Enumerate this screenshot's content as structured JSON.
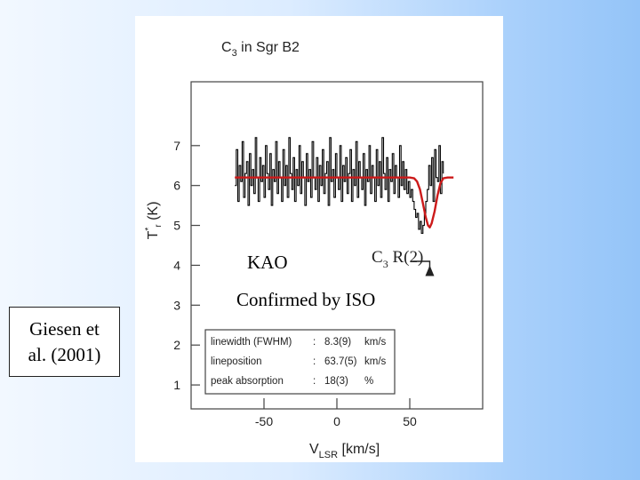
{
  "slide": {
    "credit_line1": "Giesen et",
    "credit_line2": "al. (2001)",
    "kao_label": "KAO",
    "confirmed_label": "Confirmed by ISO"
  },
  "chart_data": {
    "type": "line",
    "title": {
      "pre": "C",
      "sub": "3",
      "post": " in Sgr B2"
    },
    "xlabel": {
      "main": "V",
      "sub": "LSR",
      "unit": " [km/s]"
    },
    "ylabel": {
      "main": "T",
      "sup": "*",
      "sub": "r",
      "unit": " (K)"
    },
    "xlim": [
      -100,
      100
    ],
    "ylim": [
      0.4,
      8.6
    ],
    "xticks": [
      -50,
      0,
      50
    ],
    "yticks": [
      1,
      2,
      3,
      4,
      5,
      6,
      7
    ],
    "grid": false,
    "annotation": {
      "pre": "C",
      "sub": "3",
      "post": " R(2)",
      "x": 63.7,
      "y": 4.0
    },
    "fit_params": [
      {
        "label": "linewidth (FWHM)",
        "sep": ":",
        "value": "8.3(9)",
        "unit": "km/s"
      },
      {
        "label": "lineposition",
        "sep": ":",
        "value": "63.7(5)",
        "unit": "km/s"
      },
      {
        "label": "peak absorption",
        "sep": ":",
        "value": "18(3)",
        "unit": "%"
      }
    ],
    "series": [
      {
        "style": "data",
        "color": "#000000",
        "x_start": -70,
        "x_step": 1.0,
        "y": [
          6.0,
          6.9,
          5.6,
          6.5,
          6.1,
          7.1,
          5.7,
          6.3,
          6.6,
          5.5,
          6.8,
          6.0,
          6.4,
          5.8,
          7.2,
          6.2,
          5.6,
          6.7,
          6.1,
          6.5,
          5.7,
          7.0,
          6.3,
          5.9,
          6.8,
          5.5,
          6.4,
          6.1,
          7.1,
          5.8,
          6.6,
          6.2,
          5.6,
          6.9,
          6.0,
          6.5,
          5.7,
          7.2,
          6.3,
          5.9,
          6.7,
          5.6,
          6.4,
          6.0,
          7.0,
          5.8,
          6.6,
          6.2,
          5.5,
          6.8,
          6.1,
          6.4,
          5.7,
          7.1,
          6.2,
          5.9,
          6.7,
          5.6,
          6.5,
          6.0,
          6.9,
          5.8,
          6.3,
          6.6,
          5.5,
          7.2,
          6.1,
          6.4,
          5.7,
          6.8,
          6.2,
          5.9,
          7.0,
          5.6,
          6.5,
          6.1,
          6.7,
          5.8,
          6.3,
          6.9,
          5.6,
          6.4,
          6.0,
          7.1,
          5.7,
          6.6,
          6.2,
          5.9,
          6.8,
          5.5,
          6.4,
          6.1,
          7.0,
          5.8,
          6.5,
          6.2,
          5.6,
          6.9,
          6.0,
          6.6,
          5.7,
          7.2,
          6.3,
          5.9,
          6.7,
          5.6,
          6.4,
          6.1,
          6.8,
          5.8,
          6.5,
          6.2,
          5.7,
          7.0,
          6.0,
          6.6,
          5.9,
          6.4,
          5.8,
          6.1,
          5.7,
          5.9,
          5.6,
          5.4,
          5.2,
          5.3,
          4.9,
          5.1,
          4.8,
          5.0,
          5.3,
          5.6,
          5.9,
          6.5,
          6.0,
          6.7,
          5.6,
          6.9,
          6.2,
          6.1,
          7.0,
          5.8,
          6.6,
          6.3
        ]
      },
      {
        "style": "fit",
        "color": "#cc1a1a",
        "x": [
          -70,
          50,
          53,
          55,
          57,
          59,
          61,
          62.5,
          63.7,
          65,
          67,
          69,
          71,
          73,
          76,
          80
        ],
        "y": [
          6.2,
          6.2,
          6.18,
          6.1,
          5.9,
          5.55,
          5.2,
          5.0,
          4.95,
          5.05,
          5.35,
          5.75,
          6.05,
          6.18,
          6.2,
          6.2
        ]
      }
    ]
  }
}
